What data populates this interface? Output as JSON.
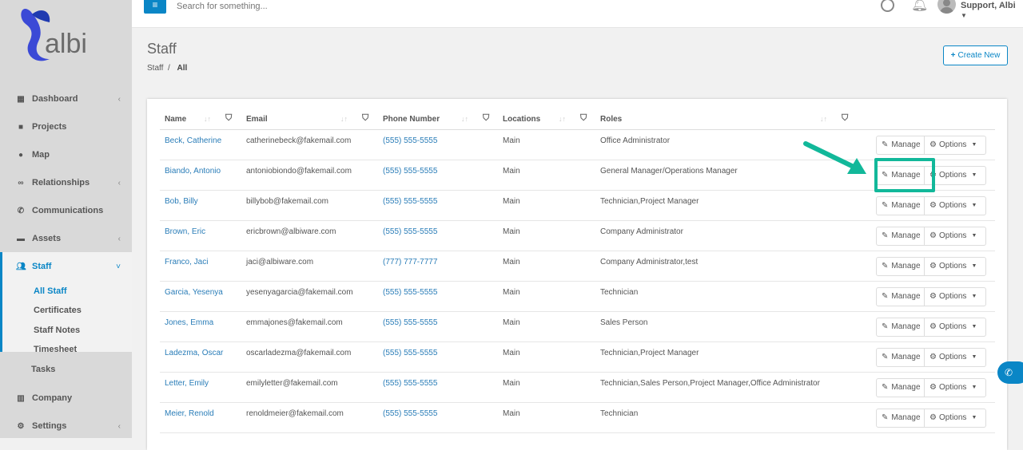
{
  "brand": {
    "name": "albi",
    "accent": "#0a86c6",
    "highlight": "#12b89a"
  },
  "topbar": {
    "menu_icon": "hamburger-icon",
    "search_placeholder": "Search for something...",
    "user": "Support, Albi"
  },
  "sidebar": {
    "items": [
      {
        "label": "Dashboard",
        "icon": "th-large",
        "chevron": true
      },
      {
        "label": "Projects",
        "icon": "briefcase",
        "chevron": false
      },
      {
        "label": "Map",
        "icon": "map-marker",
        "chevron": false
      },
      {
        "label": "Relationships",
        "icon": "handshake",
        "chevron": true
      },
      {
        "label": "Communications",
        "icon": "phone",
        "chevron": false
      },
      {
        "label": "Assets",
        "icon": "truck",
        "chevron": true
      }
    ],
    "staff": {
      "label": "Staff",
      "sub": [
        "All Staff",
        "Certificates",
        "Staff Notes",
        "Timesheet",
        "Tasks"
      ]
    },
    "bottom": [
      {
        "label": "Company"
      },
      {
        "label": "Settings"
      }
    ]
  },
  "header": {
    "title": "Staff",
    "breadcrumb": [
      "Staff",
      "All"
    ],
    "create_label": "Create New"
  },
  "table": {
    "columns": [
      "Name",
      "Email",
      "Phone Number",
      "Locations",
      "Roles"
    ],
    "manage_label": "Manage",
    "options_label": "Options",
    "rows": [
      {
        "name": "Beck, Catherine",
        "email": "catherinebeck@fakemail.com",
        "phone": "(555) 555-5555",
        "location": "Main",
        "roles": "Office Administrator"
      },
      {
        "name": "Biando, Antonio",
        "email": "antoniobiondo@fakemail.com",
        "phone": "(555) 555-5555",
        "location": "Main",
        "roles": "General Manager/Operations Manager"
      },
      {
        "name": "Bob, Billy",
        "email": "billybob@fakemail.com",
        "phone": "(555) 555-5555",
        "location": "Main",
        "roles": "Technician,Project Manager"
      },
      {
        "name": "Brown, Eric",
        "email": "ericbrown@albiware.com",
        "phone": "(555) 555-5555",
        "location": "Main",
        "roles": "Company Administrator"
      },
      {
        "name": "Franco, Jaci",
        "email": "jaci@albiware.com",
        "phone": "(777) 777-7777",
        "location": "Main",
        "roles": "Company Administrator,test"
      },
      {
        "name": "Garcia, Yesenya",
        "email": "yesenyagarcia@fakemail.com",
        "phone": "(555) 555-5555",
        "location": "Main",
        "roles": "Technician"
      },
      {
        "name": "Jones, Emma",
        "email": "emmajones@fakemail.com",
        "phone": "(555) 555-5555",
        "location": "Main",
        "roles": "Sales Person"
      },
      {
        "name": "Ladezma, Oscar",
        "email": "oscarladezma@fakemail.com",
        "phone": "(555) 555-5555",
        "location": "Main",
        "roles": "Technician,Project Manager"
      },
      {
        "name": "Letter, Emily",
        "email": "emilyletter@fakemail.com",
        "phone": "(555) 555-5555",
        "location": "Main",
        "roles": "Technician,Sales Person,Project Manager,Office Administrator"
      },
      {
        "name": "Meier, Renold",
        "email": "renoldmeier@fakemail.com",
        "phone": "(555) 555-5555",
        "location": "Main",
        "roles": "Technician"
      }
    ]
  }
}
